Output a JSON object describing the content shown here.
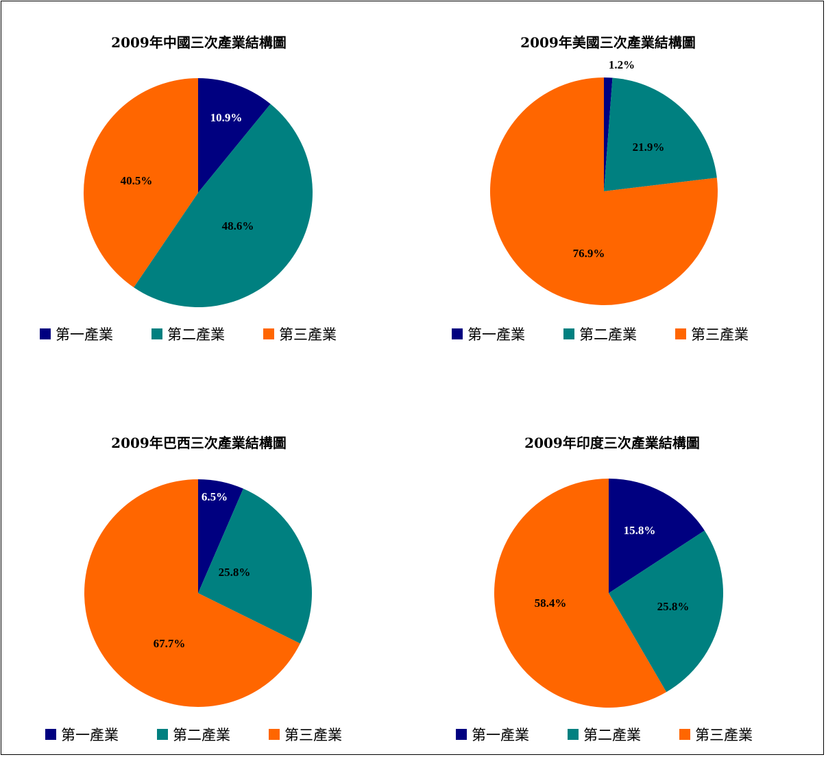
{
  "legend_labels": [
    "第一產業",
    "第二產業",
    "第三產業"
  ],
  "colors": [
    "#000080",
    "#008080",
    "#ff6600"
  ],
  "chart_data": [
    {
      "type": "pie",
      "title": "2009年中國三次產業結構圖",
      "categories": [
        "第一產業",
        "第二產業",
        "第三產業"
      ],
      "values": [
        10.9,
        48.6,
        40.5
      ],
      "labels": [
        "10.9%",
        "48.6%",
        "40.5%"
      ],
      "legend": "bottom"
    },
    {
      "type": "pie",
      "title": "2009年美國三次產業結構圖",
      "categories": [
        "第一產業",
        "第二產業",
        "第三產業"
      ],
      "values": [
        1.2,
        21.9,
        76.9
      ],
      "labels": [
        "1.2%",
        "21.9%",
        "76.9%"
      ],
      "legend": "bottom"
    },
    {
      "type": "pie",
      "title": "2009年巴西三次產業結構圖",
      "categories": [
        "第一產業",
        "第二產業",
        "第三產業"
      ],
      "values": [
        6.5,
        25.8,
        67.7
      ],
      "labels": [
        "6.5%",
        "25.8%",
        "67.7%"
      ],
      "legend": "bottom"
    },
    {
      "type": "pie",
      "title": "2009年印度三次產業結構圖",
      "categories": [
        "第一產業",
        "第二產業",
        "第三產業"
      ],
      "values": [
        15.8,
        25.8,
        58.4
      ],
      "labels": [
        "15.8%",
        "25.8%",
        "58.4%"
      ],
      "legend": "bottom"
    }
  ]
}
